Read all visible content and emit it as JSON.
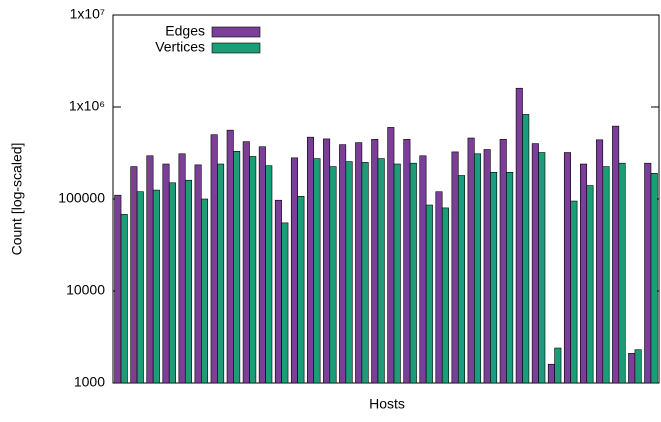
{
  "chart_data": {
    "type": "bar",
    "x_label": "Hosts",
    "y_label": "Count [log-scaled]",
    "log_scale_y": true,
    "legend": "top-left",
    "categories": [
      null,
      null,
      null,
      null,
      null,
      null,
      null,
      null,
      null,
      null,
      null,
      null,
      null,
      null,
      null,
      null,
      null,
      null,
      null,
      null,
      null,
      null,
      null,
      null,
      null,
      null,
      null,
      null,
      null,
      null,
      null,
      null,
      null,
      null
    ],
    "series": [
      {
        "name": "Edges",
        "color": "#7b3f98",
        "values": [
          110000,
          225000,
          295000,
          240000,
          310000,
          235000,
          500000,
          560000,
          420000,
          370000,
          97000,
          280000,
          470000,
          450000,
          390000,
          410000,
          445000,
          600000,
          445000,
          295000,
          120000,
          325000,
          460000,
          345000,
          445000,
          1600000,
          400000,
          1600,
          320000,
          240000,
          440000,
          620000,
          2100,
          245000
        ]
      },
      {
        "name": "Vertices",
        "color": "#1b9e77",
        "values": [
          68000,
          120000,
          125000,
          150000,
          160000,
          100000,
          240000,
          330000,
          290000,
          230000,
          55000,
          107000,
          275000,
          225000,
          255000,
          250000,
          275000,
          240000,
          245000,
          86000,
          80000,
          180000,
          310000,
          195000,
          195000,
          830000,
          320000,
          2400,
          95000,
          140000,
          225000,
          245000,
          2300,
          190000
        ]
      }
    ],
    "ylim": [
      1000,
      10000000
    ],
    "yticks": [
      1000,
      10000,
      100000,
      {
        "value": 1000000,
        "label": "1x10⁶"
      },
      {
        "value": 10000000,
        "label": "1x10⁷"
      }
    ]
  }
}
